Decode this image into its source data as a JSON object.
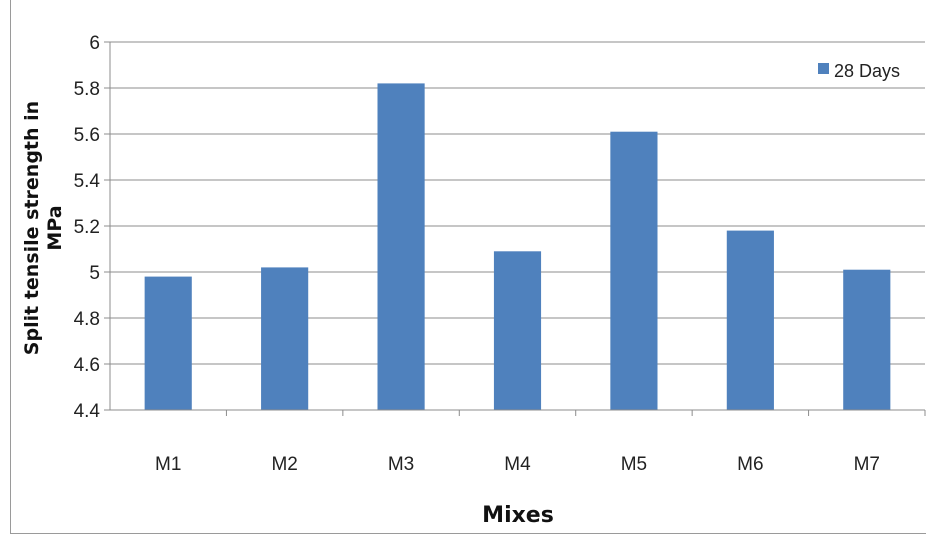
{
  "chart_data": {
    "type": "bar",
    "title": "",
    "xlabel": "Mixes",
    "ylabel": "Split tensile strength in MPa",
    "ylabel_lines": [
      "Split tensile strength in",
      "MPa"
    ],
    "categories": [
      "M1",
      "M2",
      "M3",
      "M4",
      "M5",
      "M6",
      "M7"
    ],
    "series": [
      {
        "name": "28 Days",
        "values": [
          4.98,
          5.02,
          5.82,
          5.09,
          5.61,
          5.18,
          5.01
        ],
        "color": "#4f81bd"
      }
    ],
    "ylim": [
      4.4,
      6
    ],
    "yticks": [
      "4.4",
      "4.6",
      "4.8",
      "5",
      "5.2",
      "5.4",
      "5.6",
      "5.8",
      "6"
    ],
    "grid": true,
    "legend": "top-right"
  }
}
